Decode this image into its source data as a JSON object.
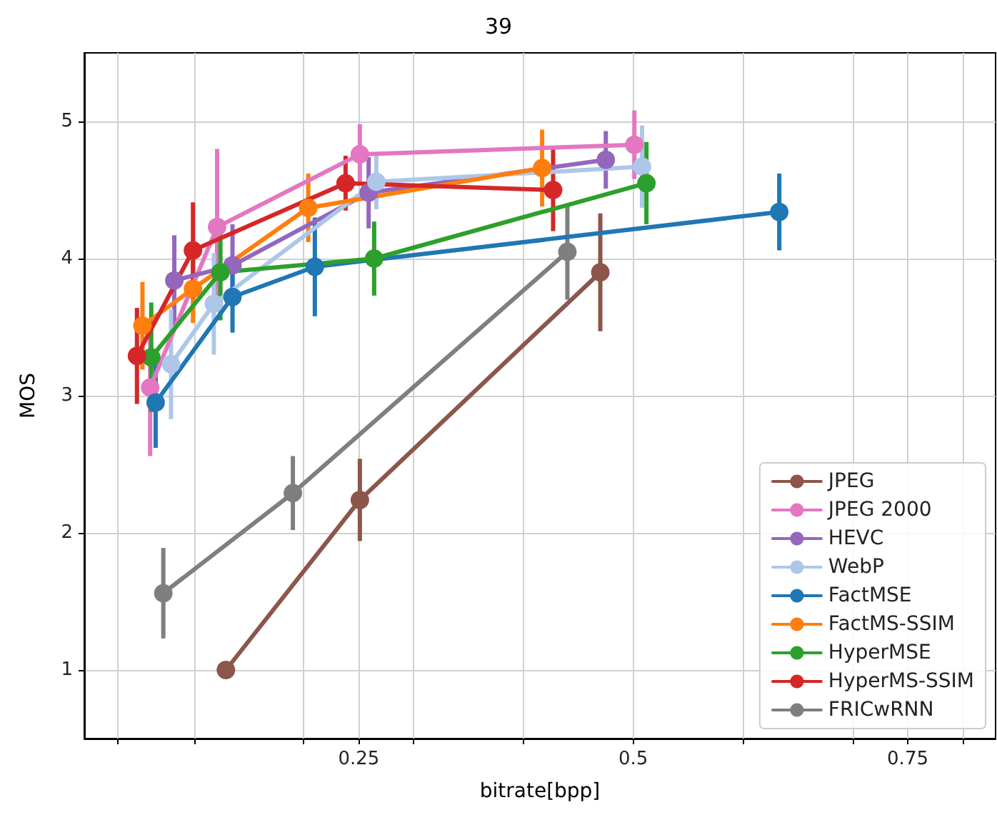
{
  "chart_data": {
    "type": "line",
    "title": "39",
    "xlabel": "bitrate[bpp]",
    "ylabel": "MOS",
    "xlim": [
      0,
      0.83
    ],
    "ylim": [
      0.5,
      5.5
    ],
    "xticks": [
      {
        "value": 0.03,
        "label": null
      },
      {
        "value": 0.1,
        "label": null
      },
      {
        "value": 0.2,
        "label": null
      },
      0.25,
      {
        "value": 0.3,
        "label": null
      },
      {
        "value": 0.4,
        "label": null
      },
      0.5,
      {
        "value": 0.6,
        "label": null
      },
      {
        "value": 0.7,
        "label": null
      },
      0.75,
      {
        "value": 0.8,
        "label": null
      }
    ],
    "yticks": [
      1,
      2,
      3,
      4,
      5
    ],
    "grid": true,
    "legend": "bottom right",
    "marker": "circle",
    "line_style": "solid",
    "series": [
      {
        "name": "JPEG",
        "color": "#8c564b",
        "x": [
          0.129,
          0.251,
          0.47
        ],
        "values": [
          1.0,
          2.24,
          3.9
        ],
        "errors": [
          null,
          0.3,
          0.43
        ]
      },
      {
        "name": "JPEG 2000",
        "color": "#e377c2",
        "x": [
          0.06,
          0.121,
          0.251,
          0.501
        ],
        "values": [
          3.06,
          4.23,
          4.76,
          4.83
        ],
        "errors": [
          0.5,
          0.57,
          0.22,
          0.25
        ]
      },
      {
        "name": "HEVC",
        "color": "#9467bd",
        "x": [
          0.082,
          0.135,
          0.259,
          0.475
        ],
        "values": [
          3.84,
          3.95,
          4.48,
          4.72
        ],
        "errors": [
          0.33,
          0.3,
          0.26,
          0.21
        ]
      },
      {
        "name": "WebP",
        "color": "#aec7e8",
        "x": [
          0.079,
          0.118,
          0.266,
          0.508
        ],
        "values": [
          3.23,
          3.67,
          4.56,
          4.67
        ],
        "errors": [
          0.4,
          0.37,
          0.2,
          0.3
        ]
      },
      {
        "name": "FactMSE",
        "color": "#1f77b4",
        "x": [
          0.065,
          0.135,
          0.21,
          0.633
        ],
        "values": [
          2.95,
          3.72,
          3.94,
          4.34
        ],
        "errors": [
          0.33,
          0.26,
          0.36,
          0.28
        ]
      },
      {
        "name": "FactMS-SSIM",
        "color": "#ff7f0e",
        "x": [
          0.053,
          0.099,
          0.204,
          0.417
        ],
        "values": [
          3.51,
          3.78,
          4.37,
          4.66
        ],
        "errors": [
          0.32,
          0.25,
          0.25,
          0.28
        ]
      },
      {
        "name": "HyperMSE",
        "color": "#2ca02c",
        "x": [
          0.061,
          0.124,
          0.264,
          0.512
        ],
        "values": [
          3.28,
          3.9,
          4.0,
          4.55
        ],
        "errors": [
          0.4,
          0.35,
          0.27,
          0.3
        ]
      },
      {
        "name": "HyperMS-SSIM",
        "color": "#d62728",
        "x": [
          0.048,
          0.099,
          0.238,
          0.427
        ],
        "values": [
          3.29,
          4.06,
          4.55,
          4.5
        ],
        "errors": [
          0.35,
          0.35,
          0.2,
          0.3
        ]
      },
      {
        "name": "FRICwRNN",
        "color": "#7f7f7f",
        "x": [
          0.072,
          0.19,
          0.44
        ],
        "values": [
          1.56,
          2.29,
          4.05
        ],
        "errors": [
          0.33,
          0.27,
          0.35
        ]
      }
    ]
  }
}
